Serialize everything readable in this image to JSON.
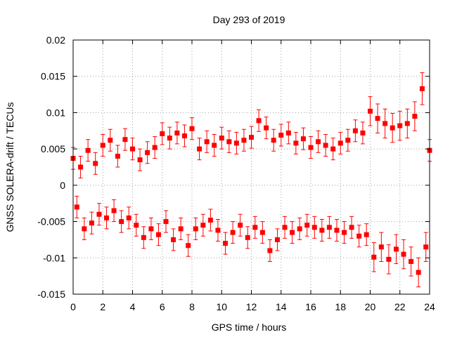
{
  "chart_data": {
    "type": "scatter",
    "title": "Day 293 of 2019",
    "xlabel": "GPS time / hours",
    "ylabel": "GNSS SOLERA-drift / TECUs",
    "xlim": [
      0,
      24
    ],
    "ylim": [
      -0.015,
      0.02
    ],
    "x_ticks": [
      0,
      2,
      4,
      6,
      8,
      10,
      12,
      14,
      16,
      18,
      20,
      22,
      24
    ],
    "x_tick_labels": [
      "0",
      "2",
      "4",
      "6",
      "8",
      "10",
      "12",
      "14",
      "16",
      "18",
      "20",
      "22",
      "24"
    ],
    "y_ticks": [
      -0.015,
      -0.01,
      -0.005,
      0,
      0.005,
      0.01,
      0.015,
      0.02
    ],
    "y_tick_labels": [
      "-0.015",
      "-0.01",
      "-0.005",
      "0",
      "0.005",
      "0.01",
      "0.015",
      "0.02"
    ],
    "grid": true,
    "marker_color": "#ff0000",
    "series": [
      {
        "name": "SOLERA-drift",
        "x": [
          0.0,
          0.25,
          0.5,
          0.75,
          1.0,
          1.25,
          1.5,
          1.75,
          2.0,
          2.25,
          2.5,
          2.75,
          3.0,
          3.25,
          3.5,
          3.75,
          4.0,
          4.25,
          4.5,
          4.75,
          5.0,
          5.25,
          5.5,
          5.75,
          6.0,
          6.25,
          6.5,
          6.75,
          7.0,
          7.25,
          7.5,
          7.75,
          8.0,
          8.25,
          8.5,
          8.75,
          9.0,
          9.25,
          9.5,
          9.75,
          10.0,
          10.25,
          10.5,
          10.75,
          11.0,
          11.25,
          11.5,
          11.75,
          12.0,
          12.25,
          12.5,
          12.75,
          13.0,
          13.25,
          13.5,
          13.75,
          14.0,
          14.25,
          14.5,
          14.75,
          15.0,
          15.25,
          15.5,
          15.75,
          16.0,
          16.25,
          16.5,
          16.75,
          17.0,
          17.25,
          17.5,
          17.75,
          18.0,
          18.25,
          18.5,
          18.75,
          19.0,
          19.25,
          19.5,
          19.75,
          20.0,
          20.25,
          20.5,
          20.75,
          21.0,
          21.25,
          21.5,
          21.75,
          22.0,
          22.25,
          22.5,
          22.75,
          23.0,
          23.25,
          23.5,
          23.75,
          24.0
        ],
        "y": [
          0.0037,
          -0.003,
          0.0025,
          -0.006,
          0.0048,
          -0.0052,
          0.003,
          -0.004,
          0.0055,
          -0.0045,
          0.0062,
          -0.0035,
          0.004,
          -0.005,
          0.0063,
          -0.0045,
          0.005,
          -0.0055,
          0.0035,
          -0.0072,
          0.0045,
          -0.006,
          0.0052,
          -0.0068,
          0.0071,
          -0.005,
          0.0065,
          -0.0075,
          0.0072,
          -0.006,
          0.0068,
          -0.0083,
          0.0078,
          -0.006,
          0.005,
          -0.0055,
          0.006,
          -0.0048,
          0.0055,
          -0.0062,
          0.0065,
          -0.008,
          0.006,
          -0.0065,
          0.0058,
          -0.0055,
          0.0062,
          -0.0072,
          0.0066,
          -0.0058,
          0.0089,
          -0.0065,
          0.0079,
          -0.009,
          0.0062,
          -0.0075,
          0.0069,
          -0.0058,
          0.0072,
          -0.0065,
          0.0058,
          -0.006,
          0.0064,
          -0.0055,
          0.0052,
          -0.0058,
          0.006,
          -0.0062,
          0.0055,
          -0.0058,
          0.005,
          -0.0062,
          0.0058,
          -0.0065,
          0.0062,
          -0.0058,
          0.0075,
          -0.007,
          0.0072,
          -0.0068,
          0.0102,
          -0.0099,
          0.0092,
          -0.0085,
          0.0085,
          -0.0102,
          0.0079,
          -0.0088,
          0.0082,
          -0.0095,
          0.0085,
          -0.0105,
          0.0095,
          -0.012,
          0.0133,
          -0.0085,
          0.0048
        ],
        "err": [
          0.0015,
          0.0015,
          0.0015,
          0.0015,
          0.0015,
          0.0015,
          0.0015,
          0.0015,
          0.0015,
          0.0015,
          0.0015,
          0.0015,
          0.0015,
          0.0015,
          0.0015,
          0.0015,
          0.0015,
          0.0015,
          0.0015,
          0.0015,
          0.0015,
          0.0015,
          0.0015,
          0.0015,
          0.0015,
          0.0015,
          0.0015,
          0.0015,
          0.0015,
          0.0015,
          0.0015,
          0.0015,
          0.0015,
          0.0015,
          0.0015,
          0.0015,
          0.0015,
          0.0015,
          0.0015,
          0.0015,
          0.0015,
          0.0015,
          0.0015,
          0.0015,
          0.0015,
          0.0015,
          0.0015,
          0.0015,
          0.0015,
          0.0015,
          0.0015,
          0.0015,
          0.0015,
          0.0015,
          0.0015,
          0.0015,
          0.0015,
          0.0015,
          0.0015,
          0.0015,
          0.0015,
          0.0015,
          0.0015,
          0.0015,
          0.0015,
          0.0015,
          0.0015,
          0.0015,
          0.0015,
          0.0015,
          0.0015,
          0.0015,
          0.0015,
          0.0015,
          0.0015,
          0.0015,
          0.0015,
          0.0015,
          0.0015,
          0.0015,
          0.002,
          0.002,
          0.002,
          0.002,
          0.002,
          0.002,
          0.002,
          0.002,
          0.002,
          0.002,
          0.002,
          0.002,
          0.002,
          0.002,
          0.0022,
          0.002,
          0.0015
        ]
      }
    ]
  }
}
